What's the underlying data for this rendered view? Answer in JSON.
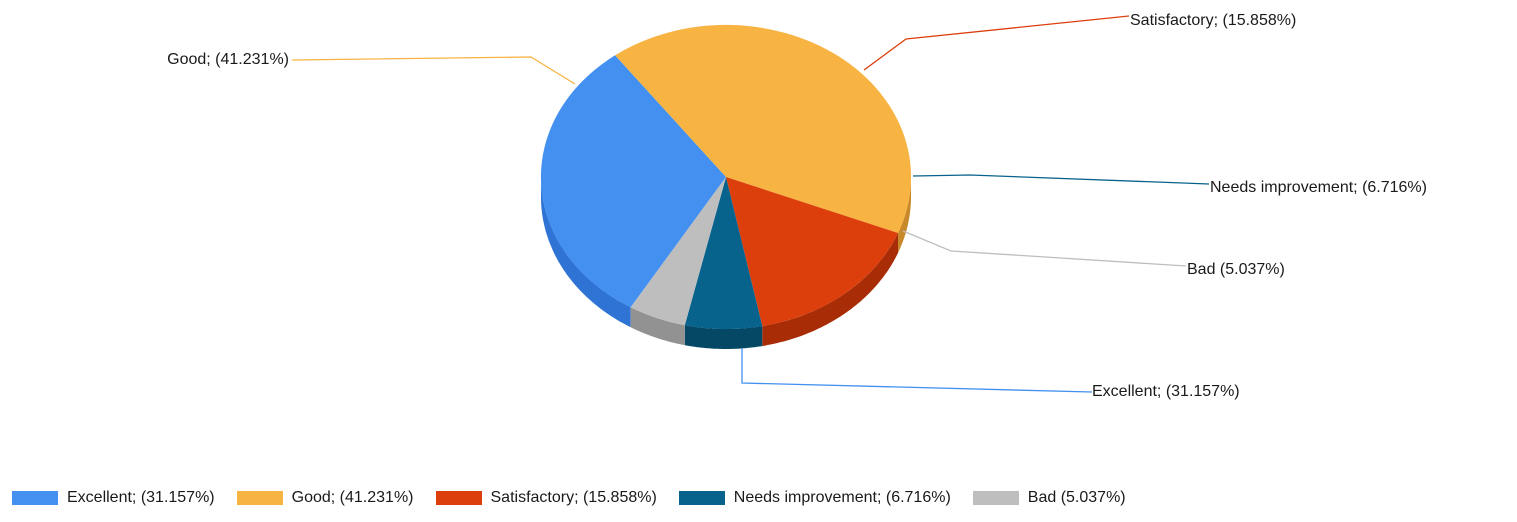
{
  "chart_data": {
    "type": "pie",
    "style": "3d",
    "legend_position": "bottom",
    "slices": [
      {
        "name": "Excellent",
        "value": 31.157,
        "label": "Excellent; (31.157%)",
        "color": "#4390F0",
        "side_color": "#2F73D4"
      },
      {
        "name": "Good",
        "value": 41.231,
        "label": "Good; (41.231%)",
        "color": "#F8B443",
        "side_color": "#C8892A"
      },
      {
        "name": "Satisfactory",
        "value": 15.858,
        "label": "Satisfactory; (15.858%)",
        "color": "#DC3F0C",
        "side_color": "#A82D06"
      },
      {
        "name": "Needs improvement",
        "value": 6.716,
        "label": "Needs improvement; (6.716%)",
        "color": "#07628C",
        "side_color": "#044866"
      },
      {
        "name": "Bad",
        "value": 5.037,
        "label": "Bad (5.037%)",
        "color": "#BEBEBE",
        "side_color": "#929292"
      }
    ]
  }
}
